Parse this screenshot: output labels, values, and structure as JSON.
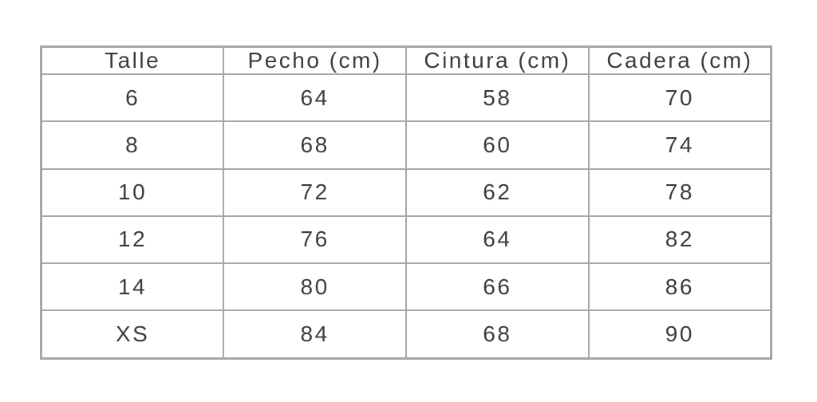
{
  "page": {
    "background_color": "#ffffff",
    "border_color": "#aba6a4",
    "text_color": "#3c3c3c"
  },
  "table": {
    "headers": [
      "Talle",
      "Pecho (cm)",
      "Cintura (cm)",
      "Cadera (cm)"
    ],
    "rows": [
      {
        "cells": [
          "6",
          "64",
          "58",
          "70"
        ]
      },
      {
        "cells": [
          "8",
          "68",
          "60",
          "74"
        ]
      },
      {
        "cells": [
          "10",
          "72",
          "62",
          "78"
        ]
      },
      {
        "cells": [
          "12",
          "76",
          "64",
          "82"
        ]
      },
      {
        "cells": [
          "14",
          "80",
          "66",
          "86"
        ]
      },
      {
        "cells": [
          "XS",
          "84",
          "68",
          "90"
        ]
      }
    ]
  },
  "chart_data": {
    "type": "table",
    "title": "",
    "columns": [
      "Talle",
      "Pecho (cm)",
      "Cintura (cm)",
      "Cadera (cm)"
    ],
    "rows": [
      [
        "6",
        64,
        58,
        70
      ],
      [
        "8",
        68,
        60,
        74
      ],
      [
        "10",
        72,
        62,
        78
      ],
      [
        "12",
        76,
        64,
        82
      ],
      [
        "14",
        80,
        66,
        86
      ],
      [
        "XS",
        84,
        68,
        90
      ]
    ],
    "layout_hints": {
      "grid": true,
      "equal_columns": 4,
      "header_row": true
    }
  }
}
